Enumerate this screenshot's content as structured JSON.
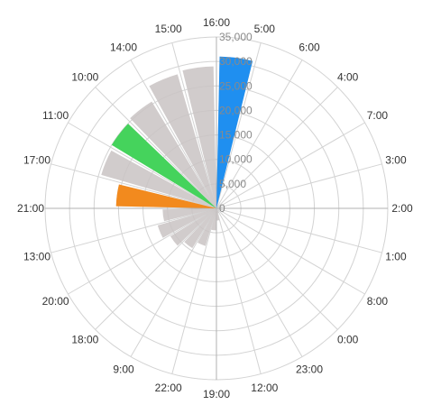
{
  "chart_data": {
    "type": "bar",
    "layout": "polar",
    "categories": [
      "16:00",
      "5:00",
      "6:00",
      "4:00",
      "7:00",
      "3:00",
      "2:00",
      "1:00",
      "8:00",
      "0:00",
      "23:00",
      "12:00",
      "19:00",
      "22:00",
      "9:00",
      "18:00",
      "20:00",
      "13:00",
      "21:00",
      "17:00",
      "11:00",
      "10:00",
      "14:00",
      "15:00"
    ],
    "values": [
      31000,
      0,
      0,
      0,
      0,
      0,
      0,
      0,
      0,
      0,
      0,
      0,
      0,
      0,
      0,
      0,
      0,
      0,
      0,
      0,
      0,
      0,
      0,
      0
    ],
    "series": [
      {
        "name": "",
        "values": [
          31000,
          0,
          0,
          0,
          0,
          0,
          0,
          0,
          0,
          0,
          0,
          0,
          0,
          0,
          0,
          0,
          0,
          0,
          0,
          0,
          0,
          0,
          0,
          0
        ]
      }
    ],
    "background_values": [
      31000,
      0,
      0,
      0,
      0,
      0,
      0,
      0,
      0,
      100,
      1000,
      2500,
      4500,
      8000,
      9500,
      11000,
      12500,
      11000,
      20500,
      24500,
      25000,
      25500,
      28500,
      29000
    ],
    "highlights": [
      {
        "category": "16:00",
        "value": 31000,
        "color": "#1f8ff0"
      },
      {
        "category": "11:00",
        "value": 25000,
        "color": "#45d35c"
      },
      {
        "category": "21:00",
        "value": 20500,
        "color": "#f28a1e"
      }
    ],
    "ylim": [
      0,
      35000
    ],
    "yticks": [
      "0",
      "5,000",
      "10,000",
      "15,000",
      "20,000",
      "25,000",
      "30,000",
      "35,000"
    ],
    "start_angle": "top",
    "direction": "clockwise",
    "grid": true,
    "title": "",
    "xlabel": "",
    "ylabel": "",
    "colors": {
      "background_bar": "#c9c3c3",
      "grid": "#d3d3d3",
      "axis": "#b0b0b0"
    }
  }
}
